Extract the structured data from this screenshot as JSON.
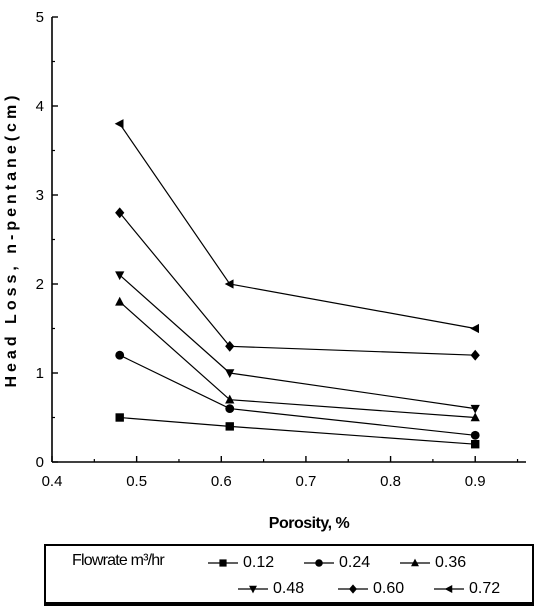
{
  "chart_data": {
    "type": "line",
    "xlabel": "Porosity, %",
    "ylabel": "Head Loss, n-pentane(cm)",
    "xlim": [
      0.4,
      0.96
    ],
    "ylim": [
      0,
      5
    ],
    "xticks": [
      "0.4",
      "0.5",
      "0.6",
      "0.7",
      "0.8",
      "0.9"
    ],
    "xtick_values": [
      0.4,
      0.5,
      0.6,
      0.7,
      0.8,
      0.9
    ],
    "yticks": [
      "0",
      "1",
      "2",
      "3",
      "4",
      "5"
    ],
    "ytick_values": [
      0,
      1,
      2,
      3,
      4,
      5
    ],
    "grid": false,
    "legend_position": "bottom",
    "legend_title": "Flowrate m³/hr",
    "x": [
      0.48,
      0.61,
      0.9
    ],
    "series": [
      {
        "name": "0.12",
        "marker": "square",
        "values": [
          0.5,
          0.4,
          0.2
        ]
      },
      {
        "name": "0.24",
        "marker": "circle",
        "values": [
          1.2,
          0.6,
          0.3
        ]
      },
      {
        "name": "0.36",
        "marker": "triangle-up",
        "values": [
          1.8,
          0.7,
          0.5
        ]
      },
      {
        "name": "0.48",
        "marker": "triangle-down",
        "values": [
          2.1,
          1.0,
          0.6
        ]
      },
      {
        "name": "0.60",
        "marker": "diamond",
        "values": [
          2.8,
          1.3,
          1.2
        ]
      },
      {
        "name": "0.72",
        "marker": "triangle-left",
        "values": [
          3.8,
          2.0,
          1.5
        ]
      }
    ],
    "colors": {
      "line": "#000000",
      "marker": "#000000",
      "background": "#ffffff"
    }
  }
}
